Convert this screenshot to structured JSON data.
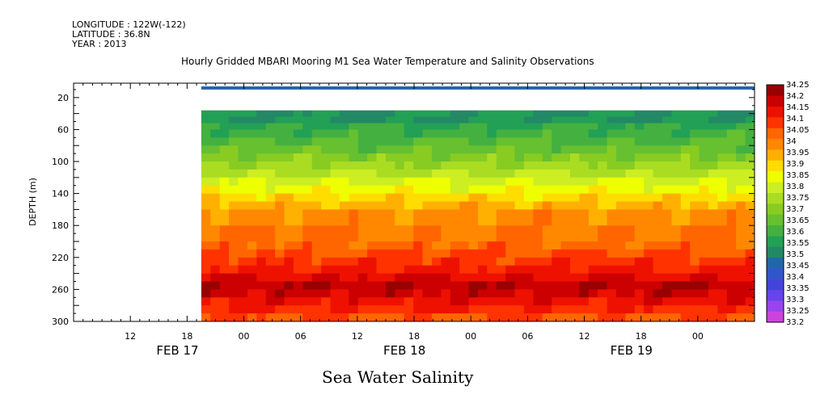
{
  "header": {
    "longitude": "LONGITUDE : 122W(-122)",
    "latitude": "LATITUDE : 36.8N",
    "year": "YEAR : 2013"
  },
  "title": "Hourly Gridded MBARI Mooring M1 Sea Water Temperature and Salinity Observations",
  "variable_title": "Sea Water Salinity",
  "chart_data": {
    "type": "heatmap",
    "title": "Hourly Gridded MBARI Mooring M1 Sea Water Temperature and Salinity Observations",
    "variable": "Sea Water Salinity",
    "xlabel": "",
    "ylabel": "DEPTH (m)",
    "y_ticks": [
      20,
      60,
      100,
      140,
      180,
      220,
      260,
      300
    ],
    "y_range": [
      2,
      300
    ],
    "y_inverted": true,
    "x_tick_labels": [
      "12",
      "18",
      "00",
      "06",
      "12",
      "18",
      "00",
      "06",
      "12",
      "18",
      "00"
    ],
    "x_date_labels": [
      "FEB 17",
      "FEB 18",
      "FEB 19"
    ],
    "x_range_hours": [
      -18,
      54
    ],
    "data_start_hours": -4.5,
    "levels": [
      33.2,
      33.25,
      33.3,
      33.35,
      33.4,
      33.45,
      33.5,
      33.55,
      33.6,
      33.65,
      33.7,
      33.75,
      33.8,
      33.85,
      33.9,
      33.95,
      34.0,
      34.05,
      34.1,
      34.15,
      34.2,
      34.25
    ],
    "level_colors": [
      "#cc44dd",
      "#9944ee",
      "#6644ee",
      "#4444dd",
      "#3355cc",
      "#2266aa",
      "#228866",
      "#22a055",
      "#44b040",
      "#66c030",
      "#88cc22",
      "#aadd22",
      "#ccee22",
      "#eeff00",
      "#ffdd00",
      "#ffb000",
      "#ff8800",
      "#ff6600",
      "#ff3300",
      "#ee1100",
      "#cc0000",
      "#990000"
    ],
    "surface_band": {
      "depth_range": [
        6,
        10
      ],
      "value": 33.45
    },
    "missing_depth_range": [
      10,
      36
    ],
    "depths": [
      36,
      44,
      52,
      60,
      70,
      80,
      90,
      100,
      110,
      120,
      130,
      140,
      150,
      160,
      180,
      200,
      210,
      220,
      230,
      240,
      250,
      260,
      270,
      280,
      290,
      300
    ],
    "profile_values": [
      33.55,
      33.55,
      33.6,
      33.62,
      33.65,
      33.68,
      33.72,
      33.76,
      33.8,
      33.84,
      33.88,
      33.93,
      33.97,
      34.02,
      34.05,
      34.07,
      34.1,
      34.13,
      34.16,
      34.2,
      34.24,
      34.22,
      34.18,
      34.14,
      34.1,
      34.08
    ]
  }
}
